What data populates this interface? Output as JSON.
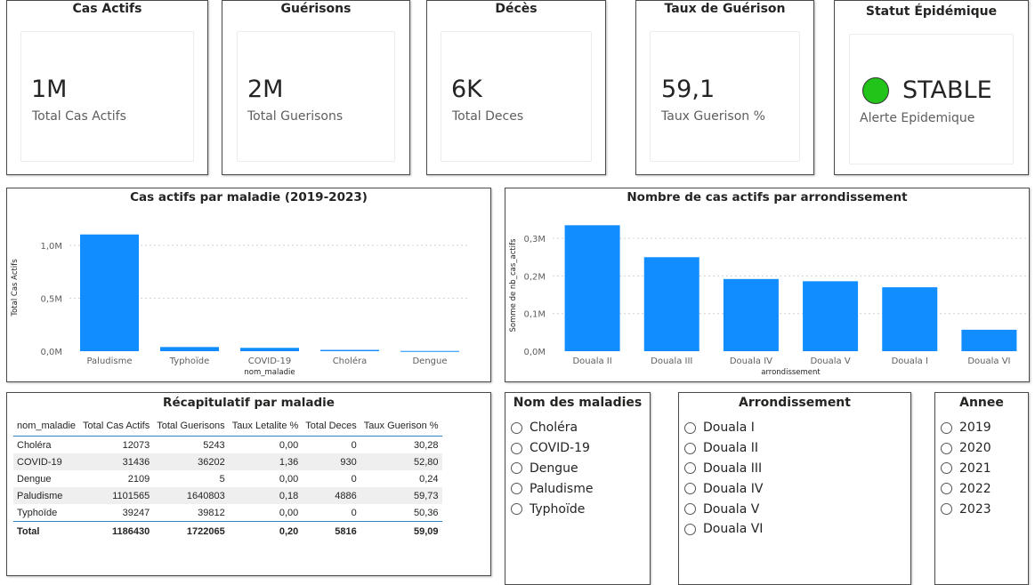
{
  "kpis": [
    {
      "title": "Cas Actifs",
      "value": "1M",
      "label": "Total Cas Actifs"
    },
    {
      "title": "Guérisons",
      "value": "2M",
      "label": "Total Guerisons"
    },
    {
      "title": "Décès",
      "value": "6K",
      "label": "Total Deces"
    },
    {
      "title": "Taux de Guérison",
      "value": "59,1",
      "label": "Taux Guerison %"
    }
  ],
  "status": {
    "title": "Statut Épidémique",
    "value": "STABLE",
    "label": "Alerte Epidemique",
    "color": "#22c41a"
  },
  "colors": {
    "bar": "#118dff",
    "text": "#252423",
    "axis": "#605e5c"
  },
  "chart_data": [
    {
      "type": "bar",
      "title": "Cas actifs par maladie (2019-2023)",
      "xlabel": "nom_maladie",
      "ylabel": "Total Cas Actifs",
      "categories": [
        "Paludisme",
        "Typhoïde",
        "COVID-19",
        "Choléra",
        "Dengue"
      ],
      "values": [
        1101565,
        39247,
        31436,
        12073,
        2109
      ],
      "ylim": [
        0,
        1200000
      ],
      "yticks": [
        {
          "v": 0,
          "label": "0,0M"
        },
        {
          "v": 500000,
          "label": "0,5M"
        },
        {
          "v": 1000000,
          "label": "1,0M"
        }
      ],
      "grid": true
    },
    {
      "type": "bar",
      "title": "Nombre de cas actifs par arrondissement",
      "xlabel": "arrondissement",
      "ylabel": "Somme de nb_cas_actifs",
      "categories": [
        "Douala II",
        "Douala III",
        "Douala IV",
        "Douala V",
        "Douala I",
        "Douala VI"
      ],
      "values": [
        335000,
        250000,
        192000,
        186000,
        170000,
        57000
      ],
      "ylim": [
        0,
        350000
      ],
      "yticks": [
        {
          "v": 0,
          "label": "0,0M"
        },
        {
          "v": 100000,
          "label": "0,1M"
        },
        {
          "v": 200000,
          "label": "0,2M"
        },
        {
          "v": 300000,
          "label": "0,3M"
        }
      ],
      "grid": true
    }
  ],
  "recap": {
    "title": "Récapitulatif par maladie",
    "columns": [
      "nom_maladie",
      "Total Cas Actifs",
      "Total Guerisons",
      "Taux Letalite %",
      "Total Deces",
      "Taux Guerison %"
    ],
    "rows": [
      [
        "Choléra",
        "12073",
        "5243",
        "0,00",
        "0",
        "30,28"
      ],
      [
        "COVID-19",
        "31436",
        "36202",
        "1,36",
        "930",
        "52,80"
      ],
      [
        "Dengue",
        "2109",
        "5",
        "0,00",
        "0",
        "0,24"
      ],
      [
        "Paludisme",
        "1101565",
        "1640803",
        "0,18",
        "4886",
        "59,73"
      ],
      [
        "Typhoïde",
        "39247",
        "39812",
        "0,00",
        "0",
        "50,36"
      ]
    ],
    "total": [
      "Total",
      "1186430",
      "1722065",
      "0,20",
      "5816",
      "59,09"
    ]
  },
  "slicers": {
    "maladies": {
      "title": "Nom des maladies",
      "items": [
        "Choléra",
        "COVID-19",
        "Dengue",
        "Paludisme",
        "Typhoïde"
      ]
    },
    "arrondissement": {
      "title": "Arrondissement",
      "items": [
        "Douala I",
        "Douala II",
        "Douala III",
        "Douala IV",
        "Douala V",
        "Douala VI"
      ]
    },
    "annee": {
      "title": "Annee",
      "items": [
        "2019",
        "2020",
        "2021",
        "2022",
        "2023"
      ]
    }
  }
}
